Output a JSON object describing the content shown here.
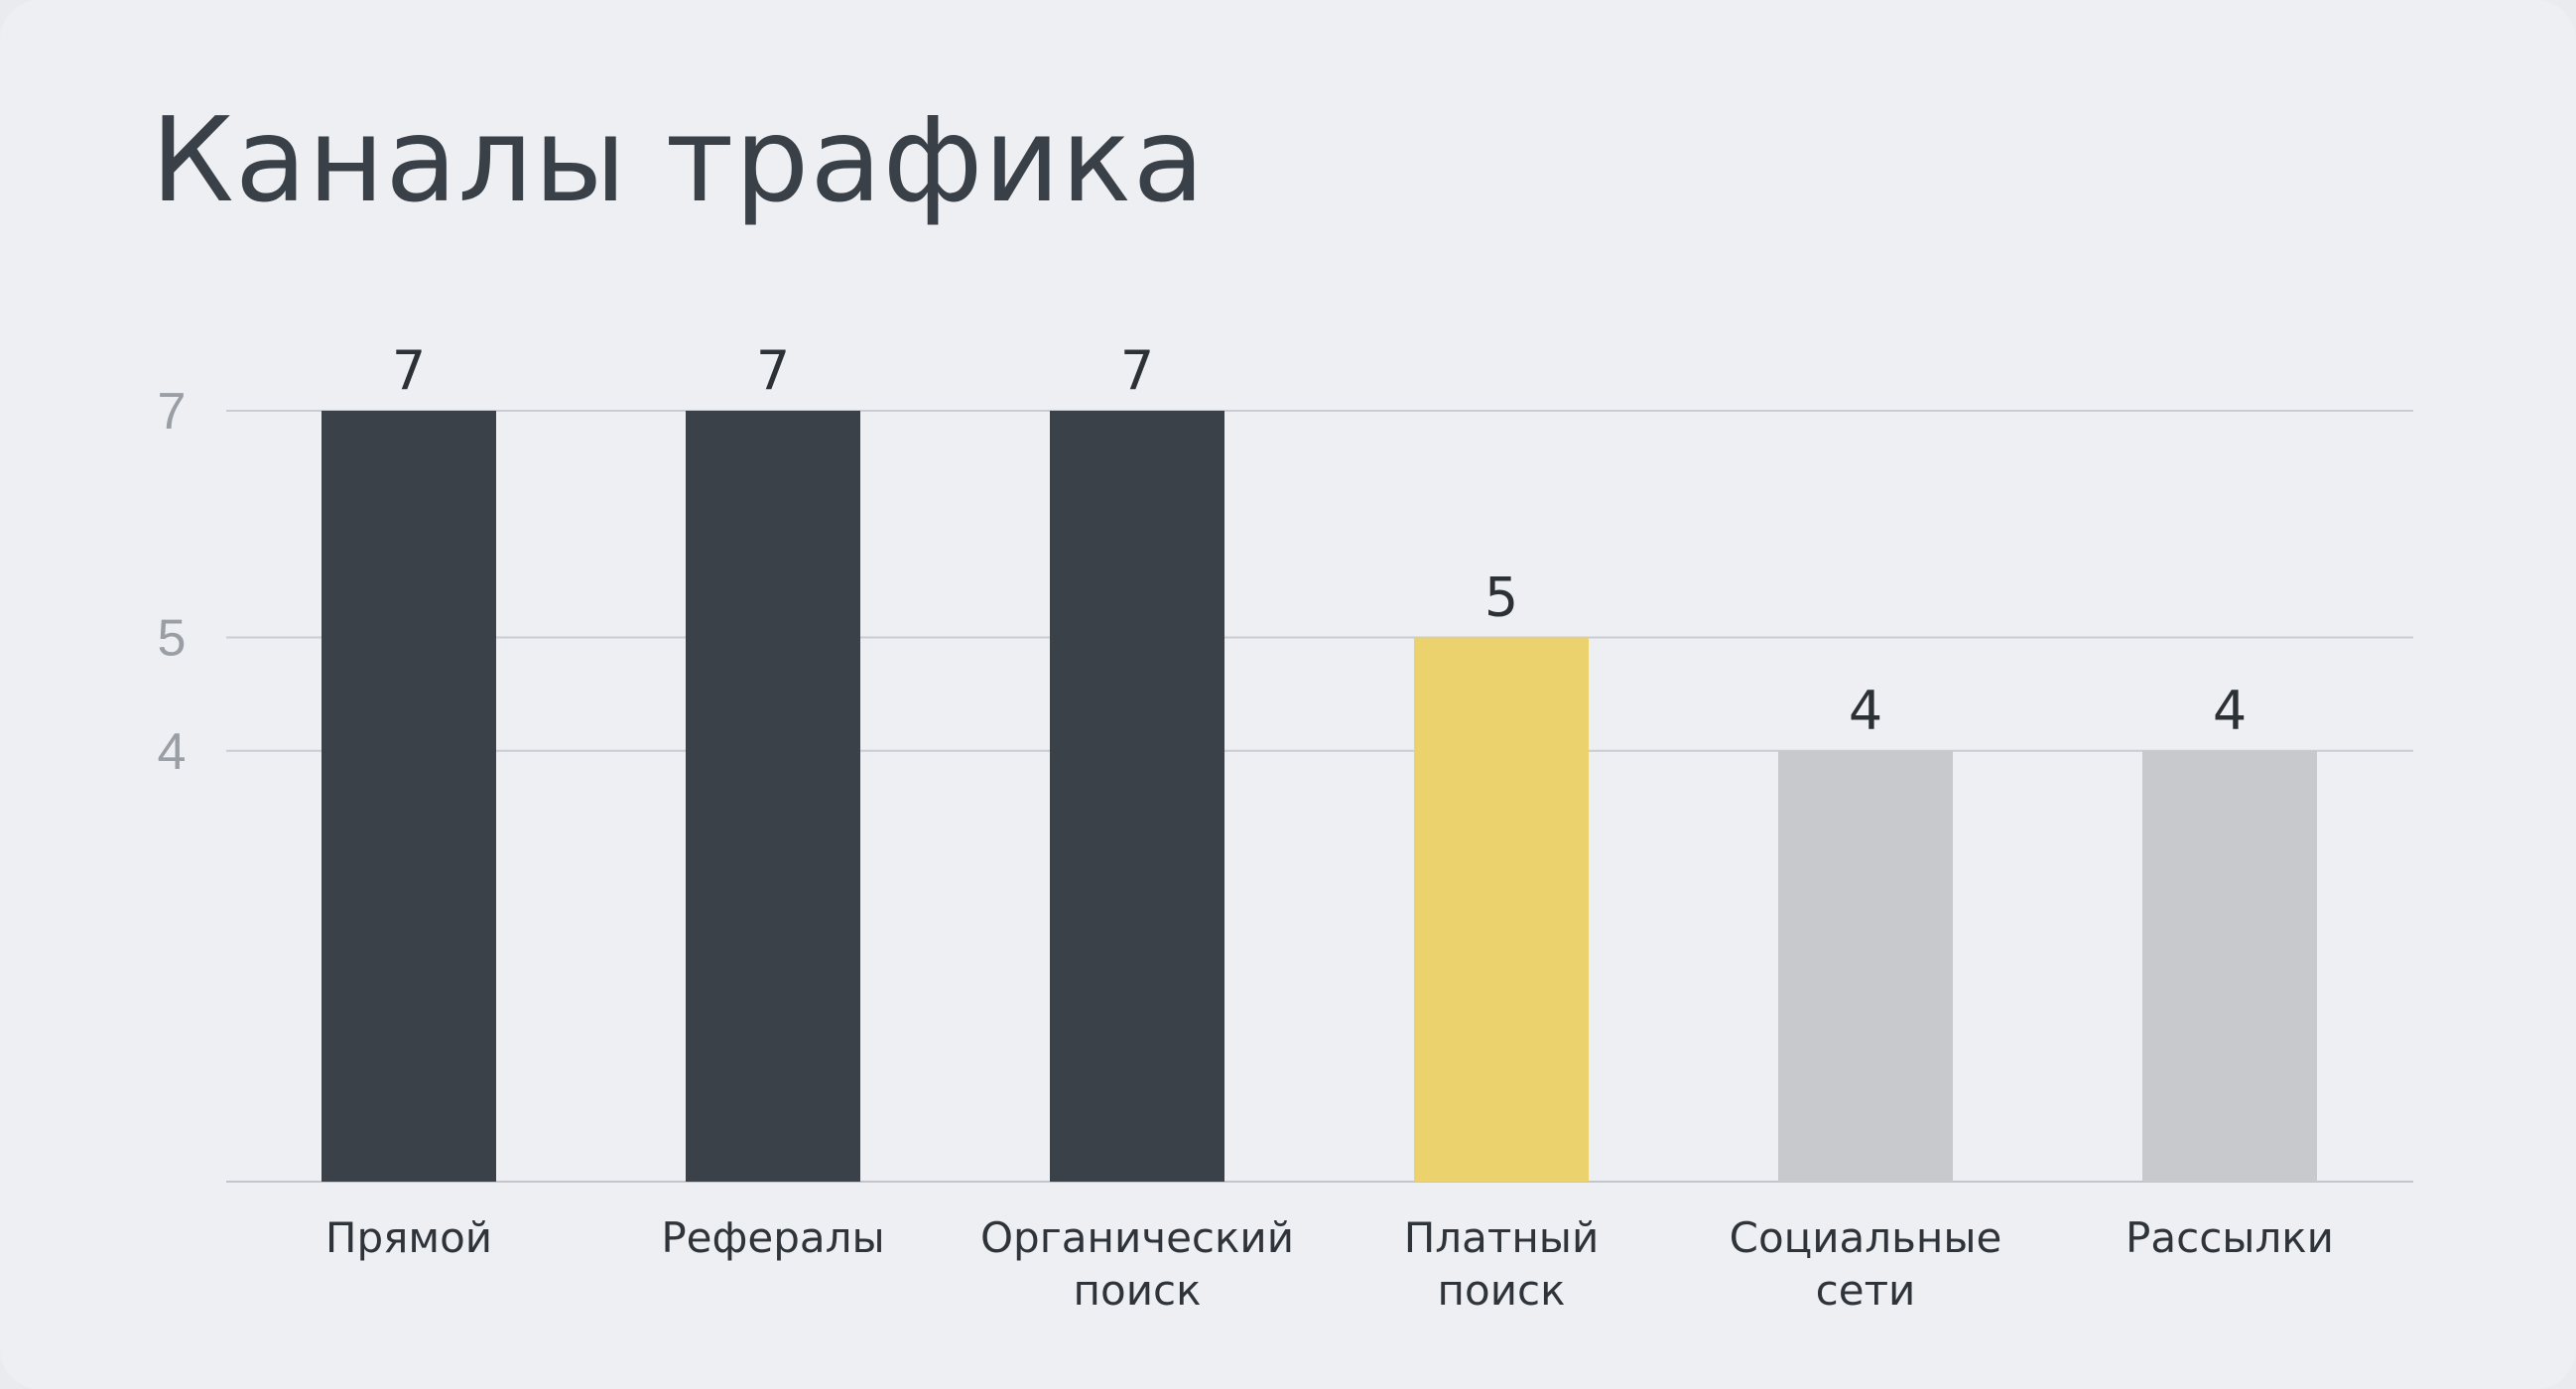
{
  "chart_data": {
    "type": "bar",
    "title": "Каналы трафика",
    "xlabel": "",
    "ylabel": "",
    "categories": [
      [
        "Прямой"
      ],
      [
        "Рефералы"
      ],
      [
        "Органический",
        "поиск"
      ],
      [
        "Платный",
        "поиск"
      ],
      [
        "Социальные",
        "сети"
      ],
      [
        "Рассылки"
      ]
    ],
    "values": [
      7,
      7,
      7,
      5,
      4,
      4
    ],
    "bar_colors": [
      "#3b4149",
      "#3b4149",
      "#3b4149",
      "#ebd26c",
      "#c8c9cd",
      "#c8c9cd"
    ],
    "yticks": [
      4,
      5,
      7
    ],
    "ylim": [
      0.2,
      7
    ],
    "grid": true,
    "legend": "none"
  }
}
